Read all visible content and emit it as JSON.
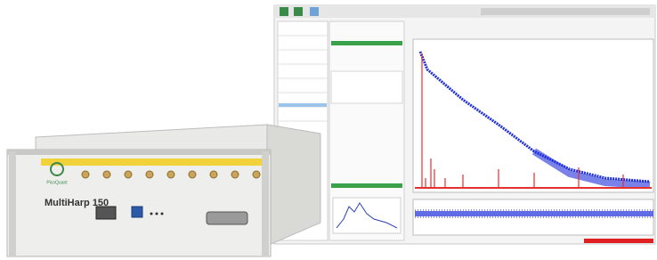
{
  "device": {
    "model": "MultiHarp 150",
    "brand": "PicoQuant"
  }
}
